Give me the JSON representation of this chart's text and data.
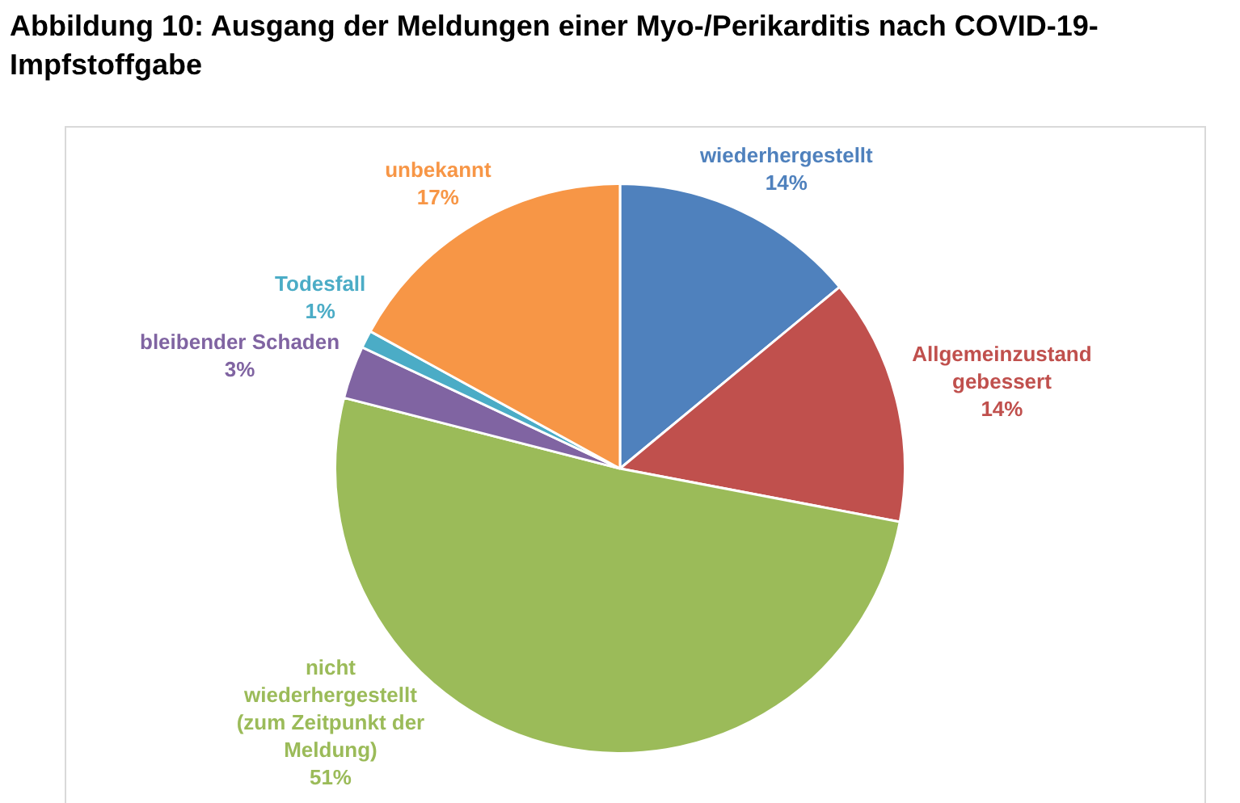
{
  "chart_data": {
    "type": "pie",
    "title": "Abbildung 10: Ausgang der Meldungen einer Myo-/Perikarditis nach COVID-19-Impfstoffgabe",
    "categories": [
      "wiederhergestellt",
      "Allgemeinzustand gebessert",
      "nicht wiederhergestellt (zum Zeitpunkt der Meldung)",
      "bleibender Schaden",
      "Todesfall",
      "unbekannt"
    ],
    "values": [
      14,
      14,
      51,
      3,
      1,
      17
    ],
    "value_labels": [
      "14%",
      "14%",
      "51%",
      "3%",
      "1%",
      "17%"
    ],
    "colors": [
      "#4f81bd",
      "#c0504d",
      "#9bbb59",
      "#8064a2",
      "#4bacc6",
      "#f79646"
    ],
    "legend": false
  }
}
